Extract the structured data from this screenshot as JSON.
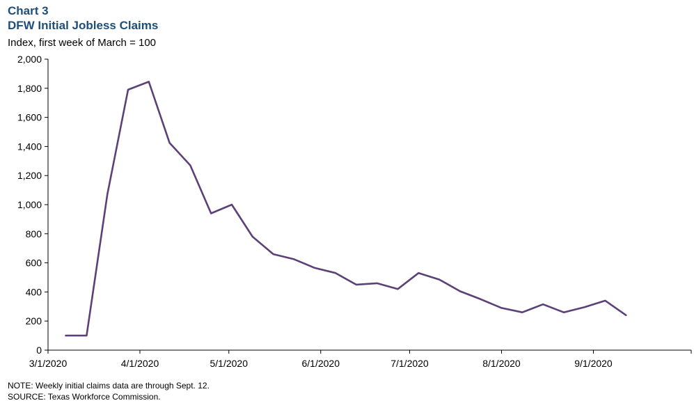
{
  "header": {
    "chart_label": "Chart 3",
    "title": "DFW Initial Jobless Claims",
    "unit_label": "Index, first week of March = 100"
  },
  "footer": {
    "note": "NOTE: Weekly initial claims data are through Sept. 12.",
    "source": "SOURCE: Texas Workforce Commission."
  },
  "colors": {
    "line": "#5c4179",
    "axis": "#000000",
    "title": "#1f4e79"
  },
  "chart_data": {
    "type": "line",
    "title": "DFW Initial Jobless Claims",
    "ylabel": "Index, first week of March = 100",
    "xlabel": "",
    "ylim": [
      0,
      2000
    ],
    "xlim": [
      "2020-03-01",
      "2020-10-04"
    ],
    "grid": false,
    "legend": "none",
    "y_ticks": [
      0,
      200,
      400,
      600,
      800,
      1000,
      1200,
      1400,
      1600,
      1800,
      2000
    ],
    "y_tick_labels": [
      "0",
      "200",
      "400",
      "600",
      "800",
      "1,000",
      "1,200",
      "1,400",
      "1,600",
      "1,800",
      "2,000"
    ],
    "x_ticks": [
      "2020-03-01",
      "2020-04-01",
      "2020-05-01",
      "2020-06-01",
      "2020-07-01",
      "2020-08-01",
      "2020-09-01"
    ],
    "x_tick_labels": [
      "3/1/2020",
      "4/1/2020",
      "5/1/2020",
      "6/1/2020",
      "7/1/2020",
      "8/1/2020",
      "9/1/2020"
    ],
    "series": [
      {
        "x": [
          "2020-03-07",
          "2020-03-14",
          "2020-03-21",
          "2020-03-28",
          "2020-04-04",
          "2020-04-11",
          "2020-04-18",
          "2020-04-25",
          "2020-05-02",
          "2020-05-09",
          "2020-05-16",
          "2020-05-23",
          "2020-05-30",
          "2020-06-06",
          "2020-06-13",
          "2020-06-20",
          "2020-06-27",
          "2020-07-04",
          "2020-07-11",
          "2020-07-18",
          "2020-07-25",
          "2020-08-01",
          "2020-08-08",
          "2020-08-15",
          "2020-08-22",
          "2020-08-29",
          "2020-09-05",
          "2020-09-12"
        ],
        "values": [
          100,
          100,
          1070,
          1790,
          1845,
          1425,
          1270,
          940,
          1000,
          780,
          660,
          625,
          565,
          530,
          450,
          460,
          420,
          530,
          485,
          405,
          350,
          290,
          260,
          315,
          260,
          295,
          340,
          240
        ]
      }
    ]
  }
}
